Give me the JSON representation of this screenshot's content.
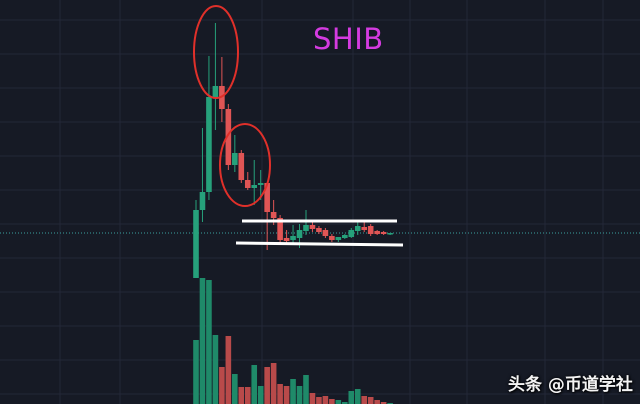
{
  "chart_data": {
    "type": "candlestick",
    "title": "SHIB",
    "grid": true,
    "colors": {
      "up": "#26a17b",
      "down": "#e05555",
      "volume_up": "#1f8a69",
      "volume_down": "#b84a4a",
      "background": "#161a25",
      "annotation": "#e0302a",
      "channel": "#ffffff",
      "price_line": "#3aa0a0"
    },
    "ohlc": [
      [
        22,
        100,
        22,
        90
      ],
      [
        90,
        172,
        78,
        108
      ],
      [
        108,
        244,
        100,
        203
      ],
      [
        203,
        277,
        170,
        214
      ],
      [
        214,
        243,
        178,
        191
      ],
      [
        191,
        196,
        130,
        135
      ],
      [
        135,
        165,
        128,
        147
      ],
      [
        147,
        150,
        117,
        120
      ],
      [
        120,
        128,
        110,
        112
      ],
      [
        112,
        140,
        95,
        115
      ],
      [
        115,
        130,
        100,
        117
      ],
      [
        117,
        117,
        50,
        88
      ],
      [
        88,
        100,
        75,
        82
      ],
      [
        82,
        85,
        55,
        60
      ],
      [
        62,
        70,
        55,
        59
      ],
      [
        60,
        75,
        55,
        64
      ],
      [
        62,
        76,
        52,
        70
      ],
      [
        69,
        90,
        65,
        75
      ],
      [
        75,
        80,
        68,
        71
      ],
      [
        72,
        74,
        66,
        68
      ],
      [
        70,
        72,
        62,
        64
      ],
      [
        64,
        66,
        58,
        60
      ],
      [
        60,
        63,
        58,
        63
      ],
      [
        62,
        66,
        61,
        65
      ],
      [
        63,
        72,
        62,
        70
      ],
      [
        69,
        80,
        65,
        74
      ],
      [
        73,
        80,
        68,
        70
      ],
      [
        74,
        76,
        64,
        66
      ],
      [
        69,
        70,
        65,
        66
      ],
      [
        68,
        69,
        65,
        66
      ],
      [
        66,
        67,
        65,
        67
      ]
    ],
    "volume": [
      64,
      126,
      124,
      69,
      37,
      68,
      30,
      17,
      17,
      39,
      18,
      37,
      41,
      20,
      18,
      25,
      18,
      29,
      11,
      7,
      8,
      5,
      4,
      2,
      13,
      15,
      8,
      7,
      4,
      2,
      1
    ],
    "price_line": 67,
    "channel": {
      "upper": [
        79,
        79
      ],
      "lower": [
        57,
        55
      ],
      "from_candle": 7,
      "to_candle": 31
    },
    "highlight_ellipses": [
      {
        "candles": [
          3,
          5
        ]
      },
      {
        "candles": [
          6,
          11
        ]
      }
    ]
  },
  "watermark": "头条 @币道学社"
}
